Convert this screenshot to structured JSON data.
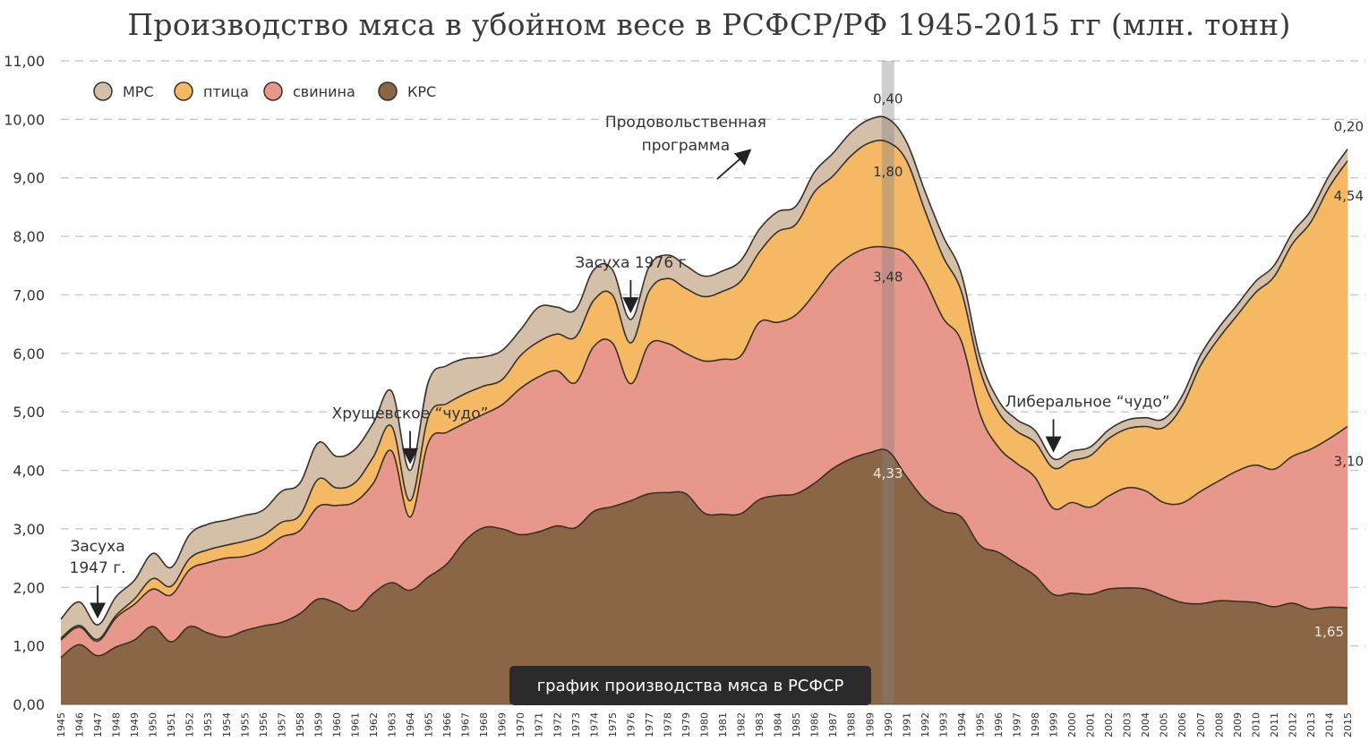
{
  "caption": "график производства мяса в РСФСР",
  "chart_data": {
    "type": "area",
    "stacked": true,
    "title": "Производство мяса в убойном весе в РСФСР/РФ 1945-2015 гг (млн. тонн)",
    "xlabel": "",
    "ylabel": "",
    "ylim": [
      0,
      11
    ],
    "yticks": [
      "0,00",
      "1,00",
      "2,00",
      "3,00",
      "4,00",
      "5,00",
      "6,00",
      "7,00",
      "8,00",
      "9,00",
      "10,00",
      "11,00"
    ],
    "grid": "horizontal dashed",
    "legend_position": "top-left",
    "x": [
      1945,
      1946,
      1947,
      1948,
      1949,
      1950,
      1951,
      1952,
      1953,
      1954,
      1955,
      1956,
      1957,
      1958,
      1959,
      1960,
      1961,
      1962,
      1963,
      1964,
      1965,
      1966,
      1967,
      1968,
      1969,
      1970,
      1971,
      1972,
      1973,
      1974,
      1975,
      1976,
      1977,
      1978,
      1979,
      1980,
      1981,
      1982,
      1983,
      1984,
      1985,
      1986,
      1987,
      1988,
      1989,
      1990,
      1991,
      1992,
      1993,
      1994,
      1995,
      1996,
      1997,
      1998,
      1999,
      2000,
      2001,
      2002,
      2003,
      2004,
      2005,
      2006,
      2007,
      2008,
      2009,
      2010,
      2011,
      2012,
      2013,
      2014,
      2015
    ],
    "series": [
      {
        "name": "КРС",
        "color": "#8b6646",
        "values": [
          0.8,
          1.02,
          0.83,
          0.98,
          1.1,
          1.33,
          1.07,
          1.33,
          1.22,
          1.15,
          1.26,
          1.34,
          1.4,
          1.55,
          1.8,
          1.73,
          1.6,
          1.9,
          2.08,
          1.95,
          2.18,
          2.4,
          2.8,
          3.02,
          3.0,
          2.9,
          2.95,
          3.05,
          3.02,
          3.3,
          3.38,
          3.48,
          3.6,
          3.62,
          3.6,
          3.27,
          3.25,
          3.26,
          3.5,
          3.57,
          3.6,
          3.78,
          4.03,
          4.2,
          4.3,
          4.33,
          3.9,
          3.5,
          3.3,
          3.2,
          2.72,
          2.6,
          2.4,
          2.2,
          1.88,
          1.9,
          1.88,
          1.97,
          1.99,
          1.97,
          1.85,
          1.74,
          1.72,
          1.77,
          1.76,
          1.74,
          1.67,
          1.73,
          1.63,
          1.66,
          1.65
        ]
      },
      {
        "name": "свинина",
        "color": "#e8978b",
        "values": [
          0.3,
          0.3,
          0.25,
          0.5,
          0.61,
          0.64,
          0.8,
          0.97,
          1.2,
          1.35,
          1.27,
          1.3,
          1.46,
          1.42,
          1.58,
          1.67,
          1.86,
          1.88,
          2.25,
          1.25,
          2.3,
          2.25,
          2.01,
          1.94,
          2.12,
          2.5,
          2.65,
          2.65,
          2.48,
          2.82,
          2.8,
          2.0,
          2.55,
          2.55,
          2.4,
          2.6,
          2.65,
          2.7,
          3.03,
          2.96,
          3.06,
          3.24,
          3.4,
          3.48,
          3.51,
          3.48,
          3.8,
          3.75,
          3.3,
          3.0,
          2.25,
          1.8,
          1.72,
          1.68,
          1.47,
          1.55,
          1.49,
          1.59,
          1.71,
          1.68,
          1.6,
          1.7,
          1.92,
          2.05,
          2.23,
          2.35,
          2.35,
          2.51,
          2.73,
          2.88,
          3.1
        ]
      },
      {
        "name": "птица",
        "color": "#f5b964",
        "values": [
          0.03,
          0.03,
          0.03,
          0.04,
          0.09,
          0.18,
          0.15,
          0.19,
          0.22,
          0.22,
          0.26,
          0.25,
          0.25,
          0.26,
          0.47,
          0.3,
          0.33,
          0.45,
          0.42,
          0.28,
          0.44,
          0.49,
          0.5,
          0.48,
          0.43,
          0.56,
          0.6,
          0.63,
          0.78,
          0.79,
          0.82,
          0.7,
          0.91,
          1.11,
          1.11,
          1.1,
          1.16,
          1.28,
          1.2,
          1.55,
          1.55,
          1.74,
          1.6,
          1.7,
          1.79,
          1.8,
          1.6,
          1.2,
          1.05,
          0.85,
          0.75,
          0.6,
          0.55,
          0.6,
          0.69,
          0.72,
          0.88,
          0.98,
          1.01,
          1.1,
          1.28,
          1.66,
          2.15,
          2.44,
          2.66,
          2.95,
          3.29,
          3.63,
          3.88,
          4.3,
          4.54
        ]
      },
      {
        "name": "МРС",
        "color": "#d4bfa8",
        "values": [
          0.33,
          0.4,
          0.25,
          0.32,
          0.32,
          0.43,
          0.32,
          0.41,
          0.44,
          0.43,
          0.44,
          0.43,
          0.53,
          0.55,
          0.62,
          0.54,
          0.57,
          0.58,
          0.6,
          0.52,
          0.6,
          0.65,
          0.6,
          0.5,
          0.5,
          0.44,
          0.59,
          0.46,
          0.47,
          0.52,
          0.43,
          0.4,
          0.42,
          0.4,
          0.39,
          0.35,
          0.35,
          0.35,
          0.39,
          0.34,
          0.31,
          0.34,
          0.39,
          0.4,
          0.4,
          0.4,
          0.32,
          0.33,
          0.35,
          0.3,
          0.22,
          0.2,
          0.2,
          0.2,
          0.16,
          0.16,
          0.15,
          0.15,
          0.15,
          0.15,
          0.15,
          0.17,
          0.18,
          0.18,
          0.18,
          0.19,
          0.19,
          0.19,
          0.2,
          0.2,
          0.2
        ]
      }
    ],
    "value_labels": [
      {
        "text": "0,40",
        "series": "МРС",
        "x": 1990
      },
      {
        "text": "1,80",
        "series": "птица",
        "x": 1990
      },
      {
        "text": "3,48",
        "series": "свинина",
        "x": 1990
      },
      {
        "text": "4,33",
        "series": "КРС",
        "x": 1990
      },
      {
        "text": "0,20",
        "series": "МРС",
        "x": 2015
      },
      {
        "text": "4,54",
        "series": "птица",
        "x": 2015
      },
      {
        "text": "3,10",
        "series": "свинина",
        "x": 2015
      },
      {
        "text": "1,65",
        "series": "КРС",
        "x": 2015
      }
    ],
    "annotations": [
      {
        "lines": [
          "Засуха",
          "1947 г."
        ],
        "x": 1947
      },
      {
        "lines": [
          "Хрущевское “чудо”"
        ],
        "x": 1964
      },
      {
        "lines": [
          "Засуха 1976 г"
        ],
        "x": 1976
      },
      {
        "lines": [
          "Продовольственная",
          "программа"
        ],
        "x": 1984.5
      },
      {
        "lines": [
          "Либеральное “чудо”"
        ],
        "x": 1999
      }
    ],
    "highlight_year": 1990
  }
}
